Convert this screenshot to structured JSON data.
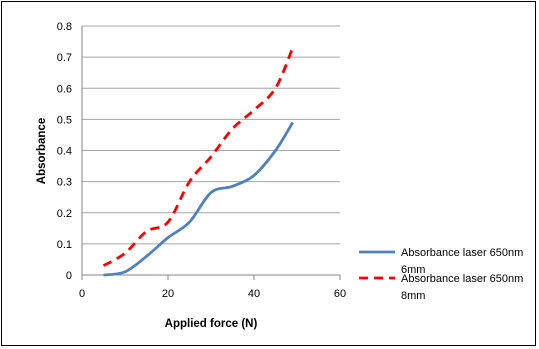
{
  "chart_data": {
    "type": "line",
    "title": "",
    "xlabel": "Applied force (N)",
    "ylabel": "Absorbance",
    "xlim": [
      0,
      60
    ],
    "ylim": [
      0,
      0.8
    ],
    "xticks": [
      0,
      20,
      40,
      60
    ],
    "yticks": [
      0,
      0.1,
      0.2,
      0.3,
      0.4,
      0.5,
      0.6,
      0.7,
      0.8
    ],
    "xtick_labels": [
      "0",
      "20",
      "40",
      "60"
    ],
    "ytick_labels": [
      "0",
      "0.1",
      "0.2",
      "0.3",
      "0.4",
      "0.5",
      "0.6",
      "0.7",
      "0.8"
    ],
    "grid": "horizontal",
    "legend_position": "right",
    "series": [
      {
        "name_lines": [
          "Absorbance laser 650nm",
          "6mm"
        ],
        "color": "#4f81bd",
        "dash": "solid",
        "x": [
          5,
          10,
          15,
          20,
          25,
          30,
          35,
          40,
          45,
          49
        ],
        "y": [
          0.0,
          0.01,
          0.06,
          0.12,
          0.17,
          0.265,
          0.285,
          0.32,
          0.4,
          0.49
        ]
      },
      {
        "name_lines": [
          "Absorbance laser 650nm",
          "8mm"
        ],
        "color": "#ff0000",
        "dash": "dashed",
        "x": [
          5,
          10,
          15,
          20,
          25,
          30,
          35,
          40,
          45,
          49
        ],
        "y": [
          0.03,
          0.07,
          0.14,
          0.17,
          0.3,
          0.38,
          0.47,
          0.53,
          0.6,
          0.73
        ]
      }
    ]
  }
}
